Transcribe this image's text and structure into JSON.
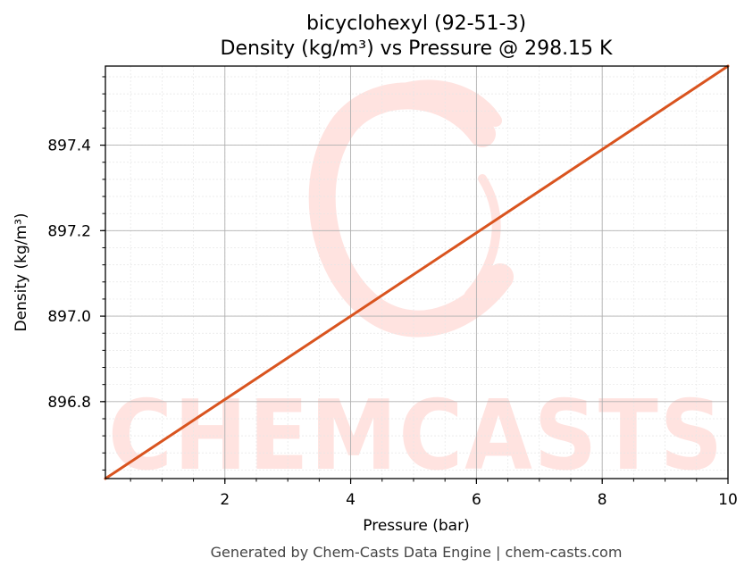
{
  "chart_data": {
    "type": "line",
    "title_line1": "bicyclohexyl (92-51-3)",
    "title_line2": "Density (kg/m³) vs Pressure @ 298.15 K",
    "xlabel": "Pressure (bar)",
    "ylabel": "Density (kg/m³)",
    "xlim": [
      0.1,
      10
    ],
    "ylim": [
      896.62,
      897.585
    ],
    "x_ticks": [
      2,
      4,
      6,
      8,
      10
    ],
    "x_tick_labels": [
      "2",
      "4",
      "6",
      "8",
      "10"
    ],
    "y_ticks": [
      896.8,
      897.0,
      897.2,
      897.4
    ],
    "y_tick_labels": [
      "896.8",
      "897.0",
      "897.2",
      "897.4"
    ],
    "grid": true,
    "series": [
      {
        "color": "#d9541f",
        "x": [
          0.1,
          2,
          4,
          6,
          8,
          10
        ],
        "y": [
          896.62,
          896.805,
          897.0,
          897.195,
          897.39,
          897.585
        ]
      }
    ]
  },
  "watermark": {
    "text": "CHEMCASTS",
    "color": "#ffe3e0"
  },
  "footer": {
    "text": "Generated by Chem-Casts Data Engine | chem-casts.com"
  }
}
